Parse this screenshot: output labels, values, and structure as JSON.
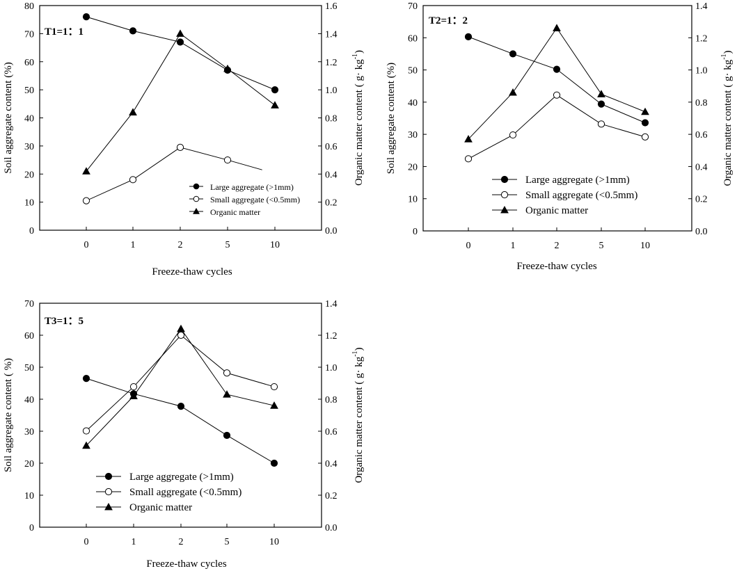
{
  "chart_data": [
    {
      "type": "line",
      "panel_label": "T1=1：1",
      "xlabel": "Freeze-thaw cycles",
      "ylabel": "Soil aggregate content (%)",
      "y2label_main": "Organic matter content ( g· kg",
      "y2label_sup": "-1",
      "y2label_end": ")",
      "categories": [
        "0",
        "1",
        "2",
        "5",
        "10"
      ],
      "ylim": [
        0,
        80
      ],
      "y2lim": [
        0,
        1.6
      ],
      "yticks": [
        "0",
        "10",
        "20",
        "30",
        "40",
        "50",
        "60",
        "70",
        "80"
      ],
      "y2ticks": [
        "0.0",
        "0.2",
        "0.4",
        "0.6",
        "0.8",
        "1.0",
        "1.2",
        "1.4",
        "1.6"
      ],
      "legend_position": "bottom-right",
      "series": [
        {
          "name": "Large aggregate (>1mm)",
          "marker": "filled-circle",
          "axis": "left",
          "values": [
            76,
            71,
            67,
            57,
            50
          ]
        },
        {
          "name": "Small aggregate (<0.5mm)",
          "marker": "open-circle",
          "axis": "left",
          "values": [
            10.5,
            18,
            29.5,
            25,
            null
          ],
          "tail_to": 21.5
        },
        {
          "name": "Organic matter",
          "marker": "filled-triangle",
          "axis": "right",
          "values": [
            0.42,
            0.84,
            1.4,
            1.15,
            0.89
          ]
        }
      ]
    },
    {
      "type": "line",
      "panel_label": "T2=1：2",
      "xlabel": "Freeze-thaw cycles",
      "ylabel": "Soil aggregate content (%)",
      "y2label_main": "Organic matter content ( g· kg",
      "y2label_sup": "-1",
      "y2label_end": ")",
      "categories": [
        "0",
        "1",
        "2",
        "5",
        "10"
      ],
      "ylim": [
        0,
        70
      ],
      "y2lim": [
        0,
        1.4
      ],
      "yticks": [
        "0",
        "10",
        "20",
        "30",
        "40",
        "50",
        "60",
        "70"
      ],
      "y2ticks": [
        "0.0",
        "0.2",
        "0.4",
        "0.6",
        "0.8",
        "1.0",
        "1.2",
        "1.4"
      ],
      "legend_position": "bottom-right",
      "series": [
        {
          "name": "Large aggregate (>1mm)",
          "marker": "filled-circle",
          "axis": "left",
          "values": [
            60.3,
            55,
            50.2,
            39.4,
            33.6
          ]
        },
        {
          "name": "Small aggregate (<0.5mm)",
          "marker": "open-circle",
          "axis": "left",
          "values": [
            22.4,
            29.8,
            42.2,
            33.2,
            29.2
          ]
        },
        {
          "name": "Organic matter",
          "marker": "filled-triangle",
          "axis": "right",
          "values": [
            0.57,
            0.86,
            1.26,
            0.85,
            0.74
          ]
        }
      ]
    },
    {
      "type": "line",
      "panel_label": "T3=1：5",
      "xlabel": "Freeze-thaw cycles",
      "ylabel": "Soil aggregate content ( %)",
      "y2label_main": "Organic matter content ( g· kg",
      "y2label_sup": "-1",
      "y2label_end": ")",
      "categories": [
        "0",
        "1",
        "2",
        "5",
        "10"
      ],
      "ylim": [
        0,
        70
      ],
      "y2lim": [
        0,
        1.4
      ],
      "yticks": [
        "0",
        "10",
        "20",
        "30",
        "40",
        "50",
        "60",
        "70"
      ],
      "y2ticks": [
        "0.0",
        "0.2",
        "0.4",
        "0.6",
        "0.8",
        "1.0",
        "1.2",
        "1.4"
      ],
      "legend_position": "bottom-left",
      "series": [
        {
          "name": "Large aggregate (>1mm)",
          "marker": "filled-circle",
          "axis": "left",
          "values": [
            46.5,
            41.7,
            37.8,
            28.7,
            20
          ]
        },
        {
          "name": "Small aggregate (<0.5mm)",
          "marker": "open-circle",
          "axis": "left",
          "values": [
            30.1,
            43.9,
            60,
            48.2,
            43.9
          ]
        },
        {
          "name": "Organic matter",
          "marker": "filled-triangle",
          "axis": "right",
          "values": [
            0.51,
            0.82,
            1.24,
            0.83,
            0.76
          ]
        }
      ]
    }
  ]
}
